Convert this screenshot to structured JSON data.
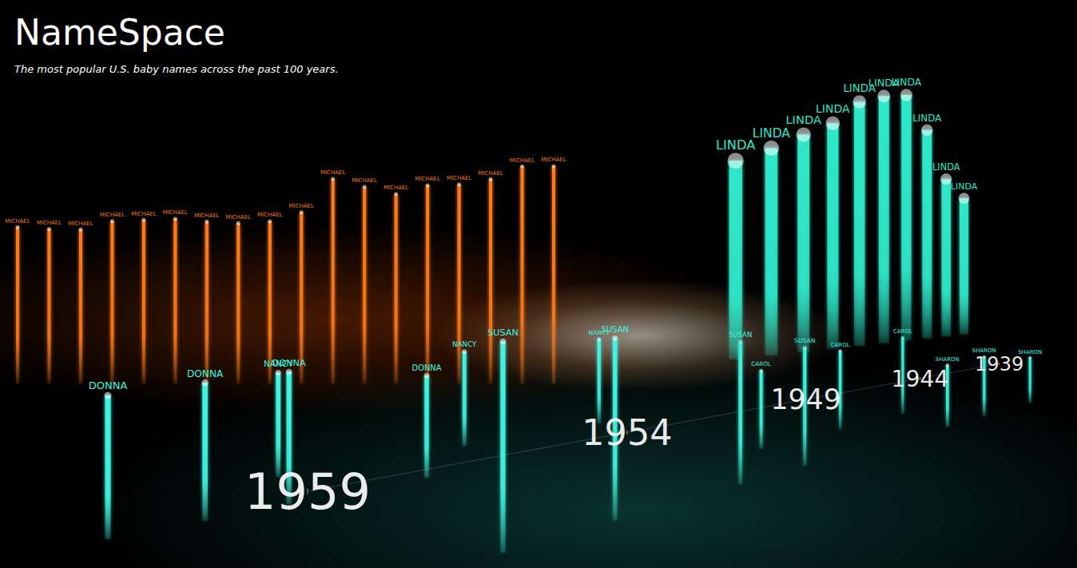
{
  "chart_data": {
    "type": "bar",
    "title": "NameSpace",
    "subtitle": "The most popular U.S. baby names across the past 100 years.",
    "tick_labels": "x",
    "xlim": [
      1939,
      1959
    ],
    "xticks": [
      1939,
      1944,
      1949,
      1954,
      1959
    ],
    "series": [
      {
        "name": "MICHAEL",
        "color": "#ff7a1a",
        "x": [
          1956,
          1958,
          1960,
          1962,
          1964,
          1966,
          1968,
          1970,
          1972,
          1974,
          1976,
          1978,
          1980,
          1982,
          1984,
          1986,
          1988,
          1990
        ],
        "values": [
          90600,
          90500,
          85200,
          83000,
          82600,
          79000,
          82000,
          85300,
          71400,
          67600,
          66800,
          67500,
          68700,
          68200,
          67700,
          64200,
          64400,
          65200
        ]
      },
      {
        "name": "LINDA",
        "color": "#2ee6c8",
        "x": [
          1944,
          1945,
          1946,
          1947,
          1948,
          1949,
          1950,
          1951,
          1952,
          1953
        ],
        "values": [
          62000,
          69000,
          88000,
          99700,
          96200,
          91000,
          80400,
          73900,
          67100,
          61000
        ]
      },
      {
        "name": "DONNA",
        "color": "#3ff5e0",
        "x": [
          1955,
          1957,
          1958,
          1959
        ],
        "values": [
          28000,
          32000,
          31000,
          30000
        ]
      },
      {
        "name": "SUSAN",
        "color": "#3ff5e0",
        "x": [
          1950,
          1952,
          1955,
          1957
        ],
        "values": [
          42000,
          46000,
          50000,
          51000
        ]
      },
      {
        "name": "CAROL",
        "color": "#3ff5e0",
        "x": [
          1943,
          1946,
          1949
        ],
        "values": [
          36000,
          33000,
          29000
        ]
      },
      {
        "name": "SHARON",
        "color": "#3ff5e0",
        "x": [
          1942,
          1945,
          1947
        ],
        "values": [
          22000,
          26000,
          25000
        ]
      },
      {
        "name": "NANCY",
        "color": "#3ff5e0",
        "x": [
          1950,
          1953,
          1956
        ],
        "values": [
          30000,
          29000,
          27000
        ]
      }
    ]
  }
}
